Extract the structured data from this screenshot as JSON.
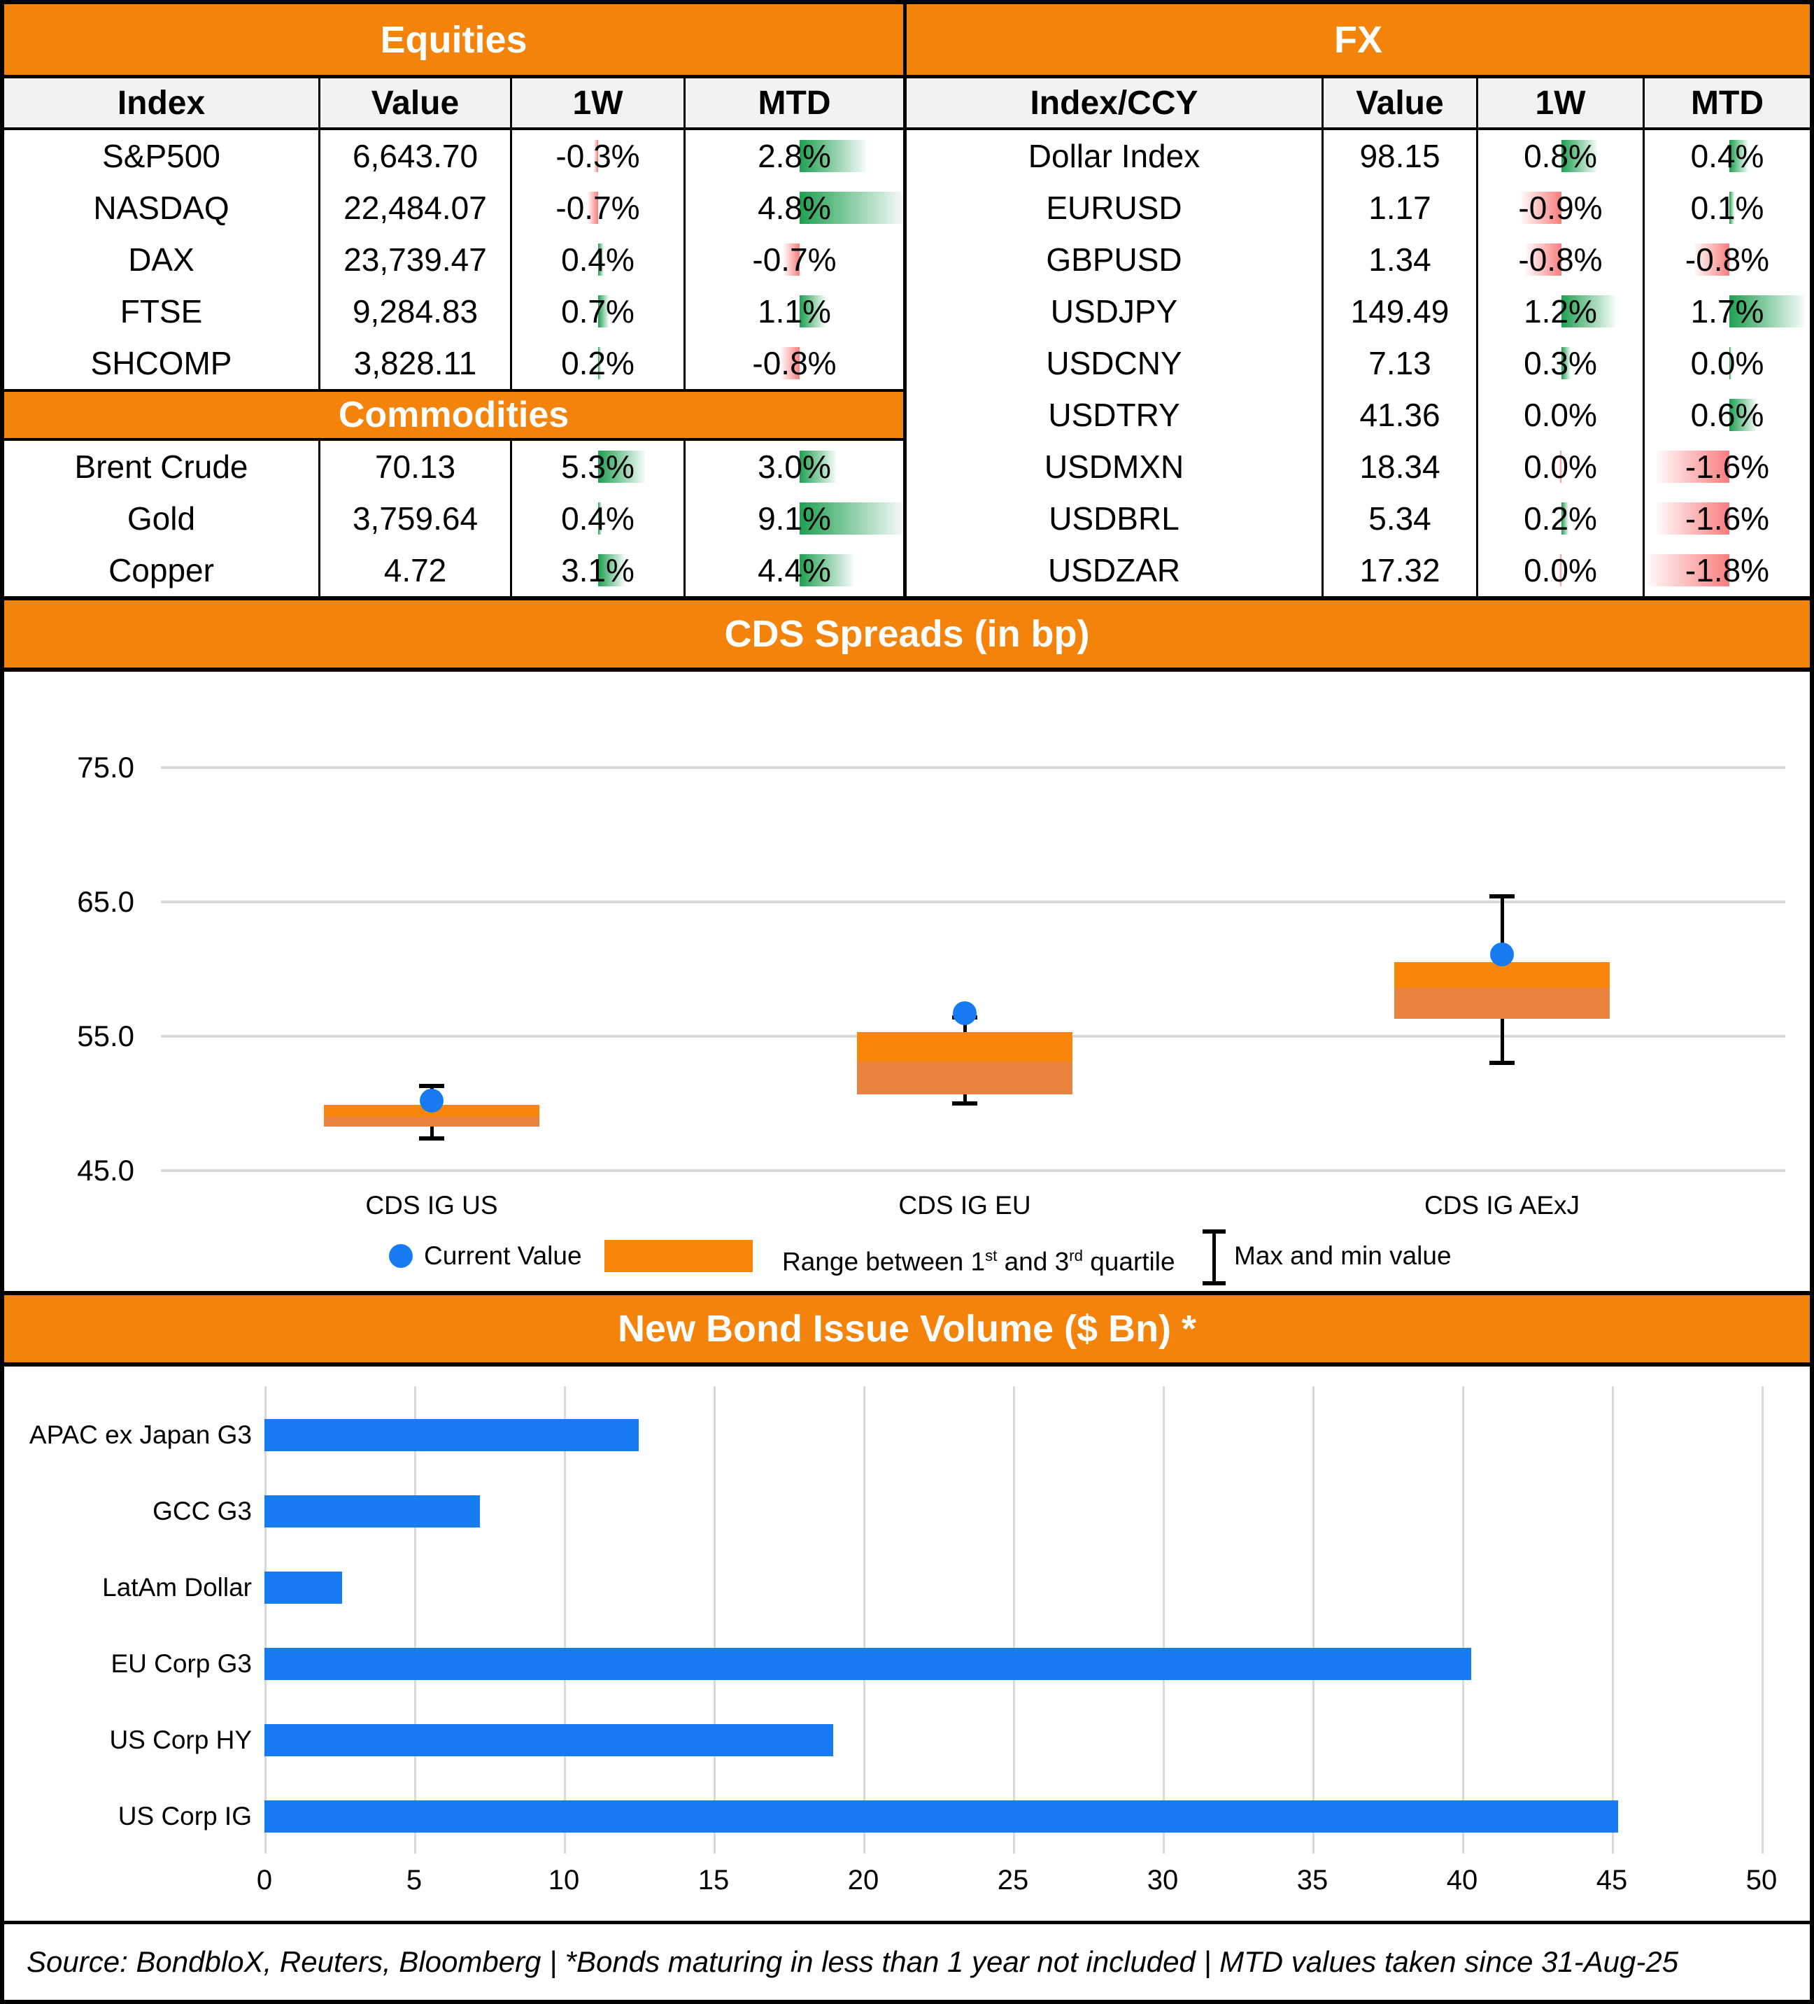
{
  "colors": {
    "orange": "#F3830B",
    "box_top": "#F8860B",
    "box_bottom": "#E8823C",
    "blue": "#177BF2",
    "green_bar": "#1EA050",
    "red_bar": "#F97D7D",
    "header_bg": "#F2F2F2",
    "gridline": "#D9D9D9"
  },
  "equities": {
    "title": "Equities",
    "columns": [
      "Index",
      "Value",
      "1W",
      "MTD"
    ],
    "rows": [
      {
        "index": "S&P500",
        "value": "6,643.70",
        "w1": {
          "t": "-0.3%",
          "bar": -6
        },
        "mtd": {
          "t": "2.8%",
          "bar": 95
        }
      },
      {
        "index": "NASDAQ",
        "value": "22,484.07",
        "w1": {
          "t": "-0.7%",
          "bar": -15
        },
        "mtd": {
          "t": "4.8%",
          "bar": 149
        }
      },
      {
        "index": "DAX",
        "value": "23,739.47",
        "w1": {
          "t": "0.4%",
          "bar": 8
        },
        "mtd": {
          "t": "-0.7%",
          "bar": -23
        }
      },
      {
        "index": "FTSE",
        "value": "9,284.83",
        "w1": {
          "t": "0.7%",
          "bar": 15
        },
        "mtd": {
          "t": "1.1%",
          "bar": 37
        }
      },
      {
        "index": "SHCOMP",
        "value": "3,828.11",
        "w1": {
          "t": "0.2%",
          "bar": 4
        },
        "mtd": {
          "t": "-0.8%",
          "bar": -27
        }
      }
    ]
  },
  "commodities": {
    "title": "Commodities",
    "rows": [
      {
        "index": "Brent Crude",
        "value": "70.13",
        "w1": {
          "t": "5.3%",
          "bar": 67
        },
        "mtd": {
          "t": "3.0%",
          "bar": 52
        }
      },
      {
        "index": "Gold",
        "value": "3,759.64",
        "w1": {
          "t": "0.4%",
          "bar": 5
        },
        "mtd": {
          "t": "9.1%",
          "bar": 149
        }
      },
      {
        "index": "Copper",
        "value": "4.72",
        "w1": {
          "t": "3.1%",
          "bar": 38
        },
        "mtd": {
          "t": "4.4%",
          "bar": 77
        }
      }
    ]
  },
  "fx": {
    "title": "FX",
    "columns": [
      "Index/CCY",
      "Value",
      "1W",
      "MTD"
    ],
    "rows": [
      {
        "index": "Dollar Index",
        "value": "98.15",
        "w1": {
          "t": "0.8%",
          "bar": 51
        },
        "mtd": {
          "t": "0.4%",
          "bar": 27
        }
      },
      {
        "index": "EURUSD",
        "value": "1.17",
        "w1": {
          "t": "-0.9%",
          "bar": -58
        },
        "mtd": {
          "t": "0.1%",
          "bar": 7
        }
      },
      {
        "index": "GBPUSD",
        "value": "1.34",
        "w1": {
          "t": "-0.8%",
          "bar": -51
        },
        "mtd": {
          "t": "-0.8%",
          "bar": -50
        }
      },
      {
        "index": "USDJPY",
        "value": "149.49",
        "w1": {
          "t": "1.2%",
          "bar": 77
        },
        "mtd": {
          "t": "1.7%",
          "bar": 107
        }
      },
      {
        "index": "USDCNY",
        "value": "7.13",
        "w1": {
          "t": "0.3%",
          "bar": 13
        },
        "mtd": {
          "t": "0.0%",
          "bar": 3
        }
      },
      {
        "index": "USDTRY",
        "value": "41.36",
        "w1": {
          "t": "0.0%",
          "bar": 0
        },
        "mtd": {
          "t": "0.6%",
          "bar": 39
        }
      },
      {
        "index": "USDMXN",
        "value": "18.34",
        "w1": {
          "t": "0.0%",
          "bar": -3
        },
        "mtd": {
          "t": "-1.6%",
          "bar": -104
        }
      },
      {
        "index": "USDBRL",
        "value": "5.34",
        "w1": {
          "t": "0.2%",
          "bar": 10
        },
        "mtd": {
          "t": "-1.6%",
          "bar": -104
        }
      },
      {
        "index": "USDZAR",
        "value": "17.32",
        "w1": {
          "t": "0.0%",
          "bar": -3
        },
        "mtd": {
          "t": "-1.8%",
          "bar": -117
        }
      }
    ]
  },
  "cds": {
    "title": "CDS Spreads (in bp)",
    "legend": {
      "current": "Current Value",
      "range_parts": [
        "Range between 1",
        "st",
        " and 3",
        "rd",
        " quartile"
      ],
      "maxmin": "Max and min value"
    }
  },
  "bond": {
    "title": "New Bond Issue Volume ($ Bn) *"
  },
  "chart_data": [
    {
      "type": "boxplot",
      "title": "CDS Spreads (in bp)",
      "ylabel": "bp",
      "ylim": [
        45,
        80
      ],
      "y_ticks": [
        "75.0",
        "65.0",
        "55.0",
        "45.0"
      ],
      "y_tick_values": [
        75,
        65,
        55,
        45
      ],
      "grid": true,
      "legend_position": "bottom",
      "series": [
        {
          "label": "CDS IG US",
          "min": 47.4,
          "q1": 48.3,
          "median": 49.0,
          "q3": 49.9,
          "max": 51.3,
          "current": 50.2
        },
        {
          "label": "CDS IG EU",
          "min": 50.0,
          "q1": 50.7,
          "median": 53.1,
          "q3": 55.3,
          "max": 56.4,
          "current": 56.7
        },
        {
          "label": "CDS IG AExJ",
          "min": 53.0,
          "q1": 56.3,
          "median": 58.6,
          "q3": 60.5,
          "max": 65.4,
          "current": 61.1
        }
      ]
    },
    {
      "type": "bar",
      "orientation": "horizontal",
      "title": "New Bond Issue Volume ($ Bn) *",
      "categories": [
        "APAC ex Japan G3",
        "GCC G3",
        "LatAm Dollar",
        "EU Corp G3",
        "US Corp HY",
        "US Corp IG"
      ],
      "values": [
        12.5,
        7.2,
        2.6,
        40.3,
        19.0,
        45.2
      ],
      "xlabel": "$ Bn",
      "xlim": [
        0,
        50
      ],
      "x_ticks": [
        0,
        5,
        10,
        15,
        20,
        25,
        30,
        35,
        40,
        45,
        50
      ],
      "grid": true
    }
  ],
  "footer": {
    "text": "Source: BondbloX, Reuters, Bloomberg | *Bonds maturing in less than 1 year not included | MTD values taken since 31-Aug-25"
  }
}
